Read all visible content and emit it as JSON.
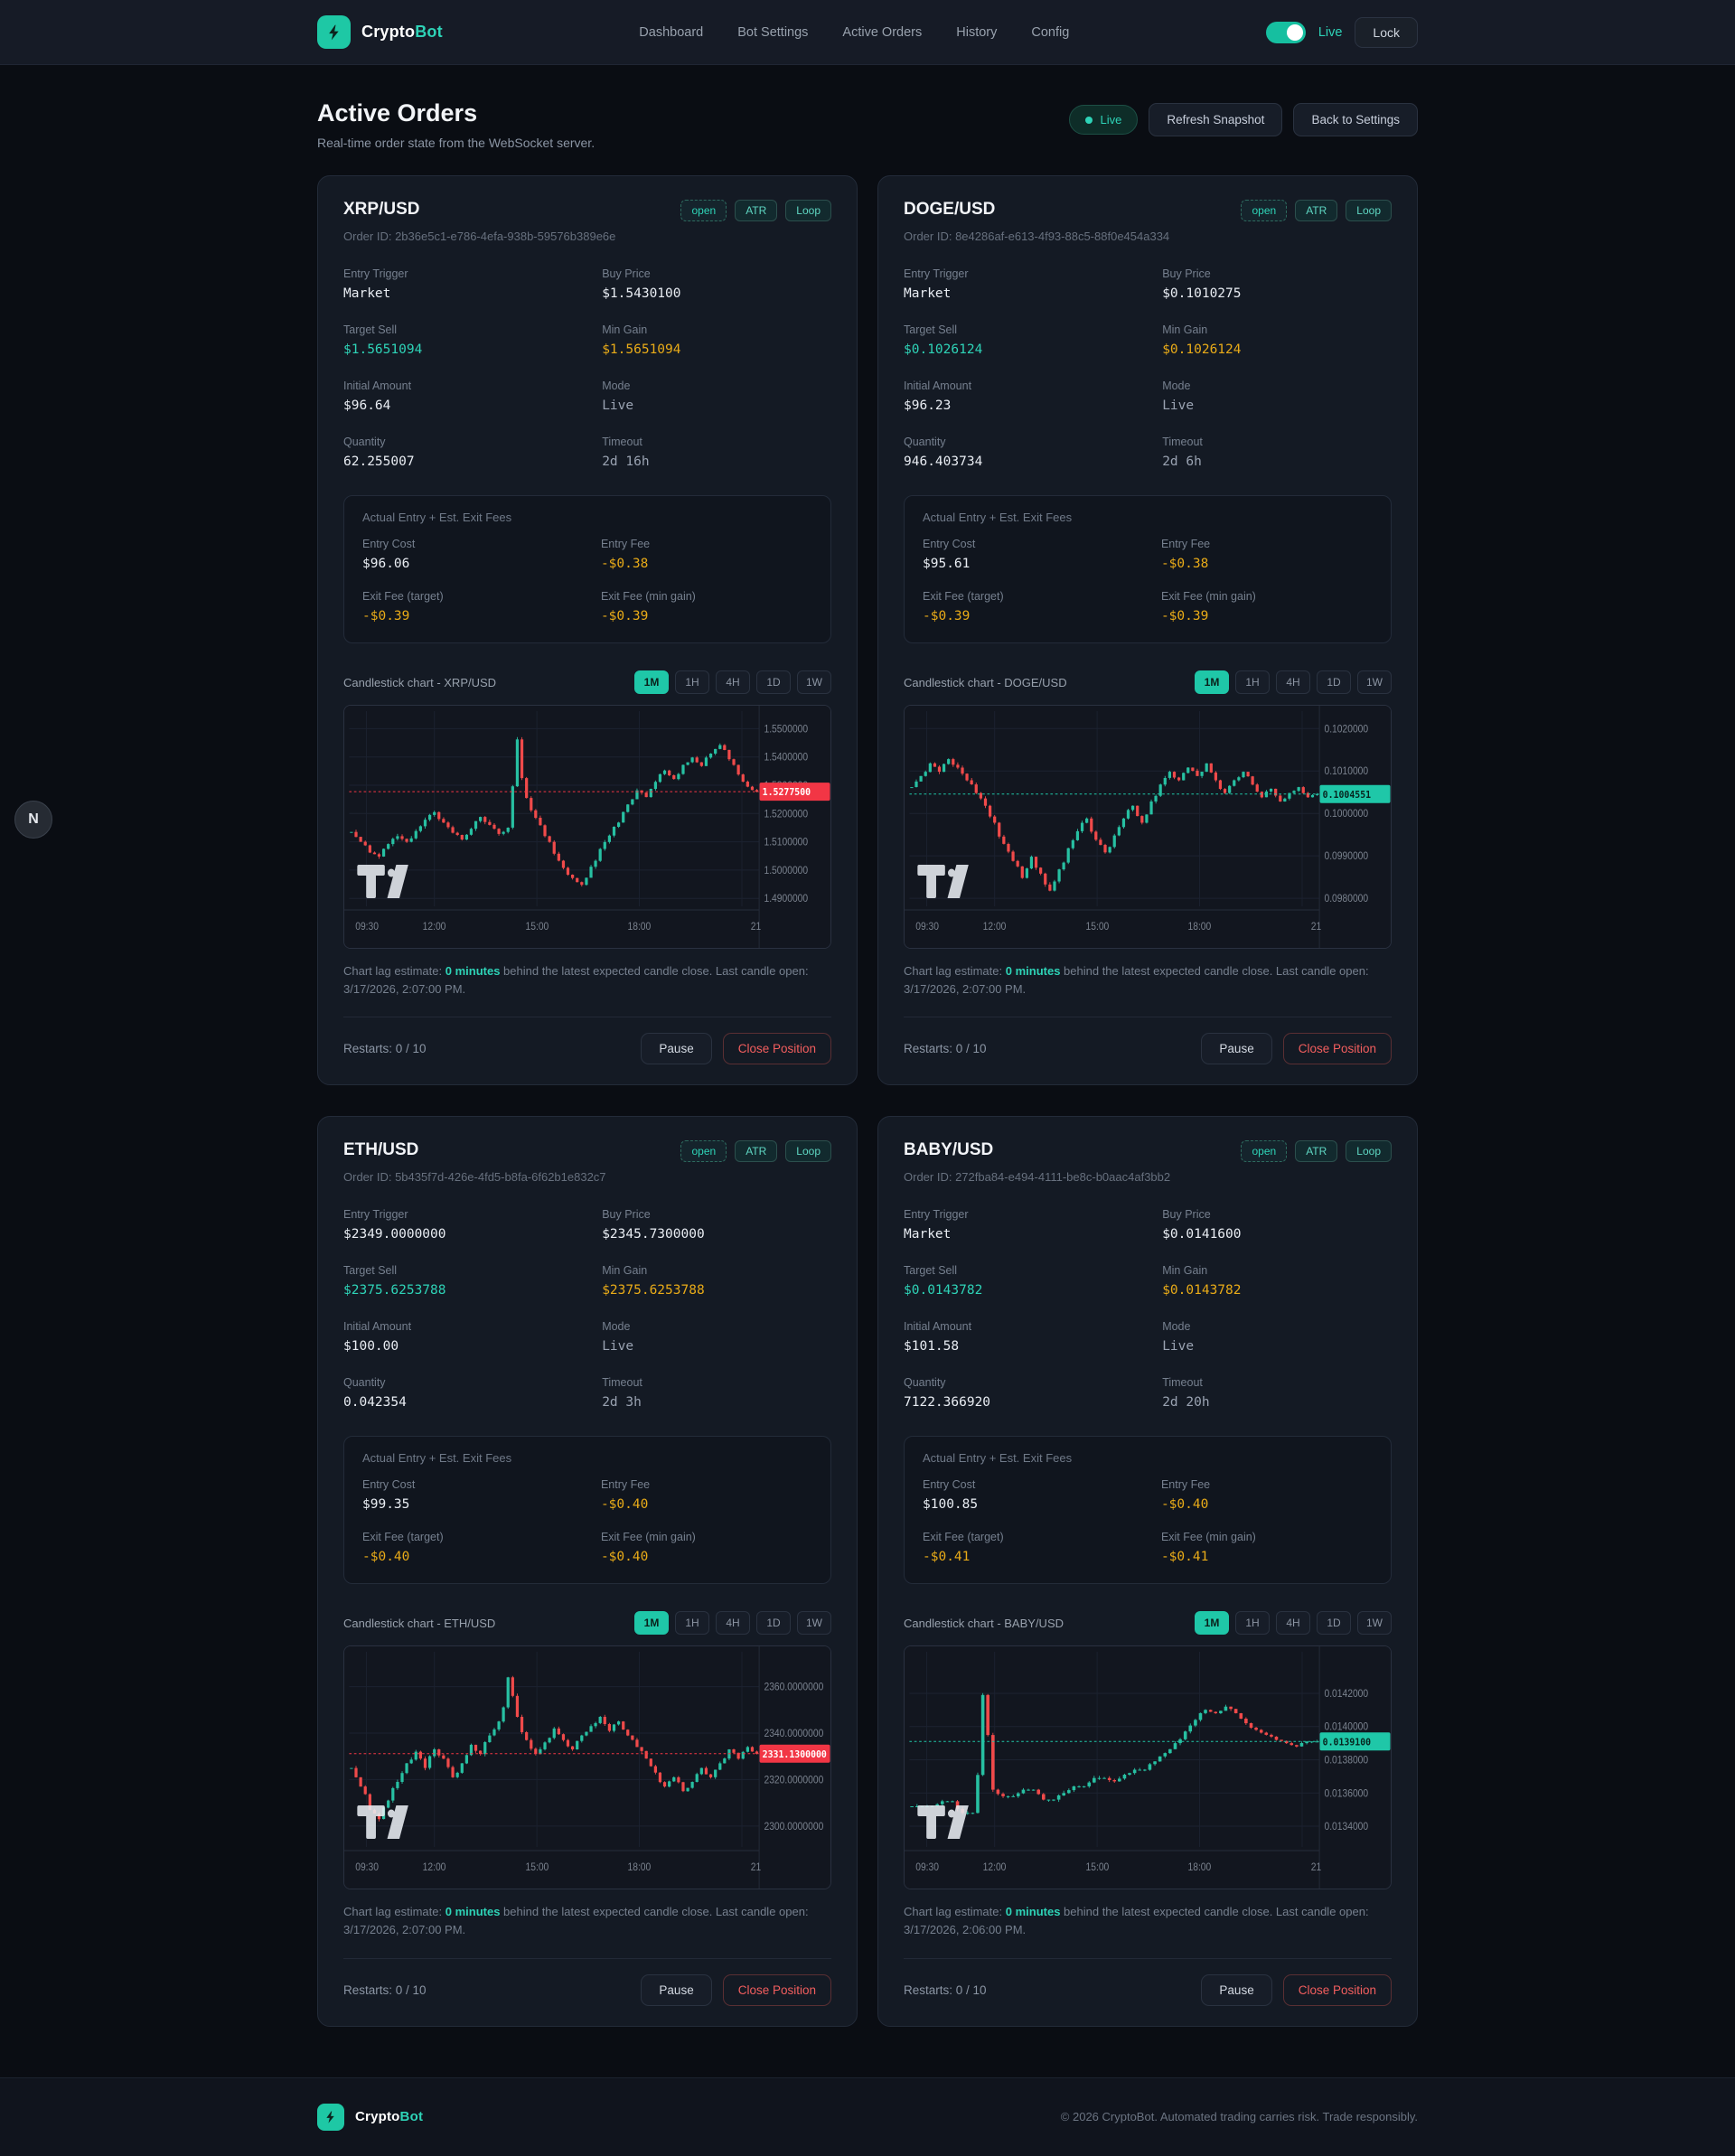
{
  "header": {
    "brand": {
      "primary": "Crypto",
      "accent": "Bot"
    },
    "nav": [
      "Dashboard",
      "Bot Settings",
      "Active Orders",
      "History",
      "Config"
    ],
    "toggle_label": "Live",
    "lock_label": "Lock"
  },
  "page": {
    "title": "Active Orders",
    "subtitle": "Real-time order state from the WebSocket server.",
    "live_badge": "Live",
    "refresh_label": "Refresh Snapshot",
    "back_label": "Back to Settings"
  },
  "floating_badge": "N",
  "cards": [
    {
      "pair": "XRP/USD",
      "order_id": "Order ID: 2b36e5c1-e786-4efa-938b-59576b389e6e",
      "badges": [
        {
          "label": "open",
          "style": "status"
        },
        {
          "label": "ATR",
          "style": "tag"
        },
        {
          "label": "Loop",
          "style": "tag"
        }
      ],
      "fields": [
        {
          "label": "Entry Trigger",
          "value": "Market",
          "cls": "white"
        },
        {
          "label": "Buy Price",
          "value": "$1.5430100",
          "cls": "white"
        },
        {
          "label": "Target Sell",
          "value": "$1.5651094",
          "cls": "teal"
        },
        {
          "label": "Min Gain",
          "value": "$1.5651094",
          "cls": "gold"
        },
        {
          "label": "Initial Amount",
          "value": "$96.64",
          "cls": "white"
        },
        {
          "label": "Mode",
          "value": "Live",
          "cls": "dim"
        },
        {
          "label": "Quantity",
          "value": "62.255007",
          "cls": "white"
        },
        {
          "label": "Timeout",
          "value": "2d 16h",
          "cls": "dim"
        }
      ],
      "fees": {
        "title": "Actual Entry + Est. Exit Fees",
        "items": [
          {
            "label": "Entry Cost",
            "value": "$96.06",
            "cls": "white"
          },
          {
            "label": "Entry Fee",
            "value": "-$0.38",
            "cls": "gold"
          },
          {
            "label": "Exit Fee (target)",
            "value": "-$0.39",
            "cls": "gold"
          },
          {
            "label": "Exit Fee (min gain)",
            "value": "-$0.39",
            "cls": "gold"
          }
        ]
      },
      "chart_title": "Candlestick chart - XRP/USD",
      "timeframes": [
        "1M",
        "1H",
        "4H",
        "1D",
        "1W"
      ],
      "active_timeframe": "1M",
      "lag": {
        "prefix": "Chart lag estimate:",
        "value": "0 minutes",
        "suffix": "behind the latest expected candle close. Last candle open: 3/17/2026, 2:07:00 PM."
      },
      "restarts": "Restarts: 0 / 10",
      "pause_label": "Pause",
      "close_label": "Close Position"
    },
    {
      "pair": "DOGE/USD",
      "order_id": "Order ID: 8e4286af-e613-4f93-88c5-88f0e454a334",
      "badges": [
        {
          "label": "open",
          "style": "status"
        },
        {
          "label": "ATR",
          "style": "tag"
        },
        {
          "label": "Loop",
          "style": "tag"
        }
      ],
      "fields": [
        {
          "label": "Entry Trigger",
          "value": "Market",
          "cls": "white"
        },
        {
          "label": "Buy Price",
          "value": "$0.1010275",
          "cls": "white"
        },
        {
          "label": "Target Sell",
          "value": "$0.1026124",
          "cls": "teal"
        },
        {
          "label": "Min Gain",
          "value": "$0.1026124",
          "cls": "gold"
        },
        {
          "label": "Initial Amount",
          "value": "$96.23",
          "cls": "white"
        },
        {
          "label": "Mode",
          "value": "Live",
          "cls": "dim"
        },
        {
          "label": "Quantity",
          "value": "946.403734",
          "cls": "white"
        },
        {
          "label": "Timeout",
          "value": "2d 6h",
          "cls": "dim"
        }
      ],
      "fees": {
        "title": "Actual Entry + Est. Exit Fees",
        "items": [
          {
            "label": "Entry Cost",
            "value": "$95.61",
            "cls": "white"
          },
          {
            "label": "Entry Fee",
            "value": "-$0.38",
            "cls": "gold"
          },
          {
            "label": "Exit Fee (target)",
            "value": "-$0.39",
            "cls": "gold"
          },
          {
            "label": "Exit Fee (min gain)",
            "value": "-$0.39",
            "cls": "gold"
          }
        ]
      },
      "chart_title": "Candlestick chart - DOGE/USD",
      "timeframes": [
        "1M",
        "1H",
        "4H",
        "1D",
        "1W"
      ],
      "active_timeframe": "1M",
      "lag": {
        "prefix": "Chart lag estimate:",
        "value": "0 minutes",
        "suffix": "behind the latest expected candle close. Last candle open: 3/17/2026, 2:07:00 PM."
      },
      "restarts": "Restarts: 0 / 10",
      "pause_label": "Pause",
      "close_label": "Close Position"
    },
    {
      "pair": "ETH/USD",
      "order_id": "Order ID: 5b435f7d-426e-4fd5-b8fa-6f62b1e832c7",
      "badges": [
        {
          "label": "open",
          "style": "status"
        },
        {
          "label": "ATR",
          "style": "tag"
        },
        {
          "label": "Loop",
          "style": "tag"
        }
      ],
      "fields": [
        {
          "label": "Entry Trigger",
          "value": "$2349.0000000",
          "cls": "white"
        },
        {
          "label": "Buy Price",
          "value": "$2345.7300000",
          "cls": "white"
        },
        {
          "label": "Target Sell",
          "value": "$2375.6253788",
          "cls": "teal"
        },
        {
          "label": "Min Gain",
          "value": "$2375.6253788",
          "cls": "gold"
        },
        {
          "label": "Initial Amount",
          "value": "$100.00",
          "cls": "white"
        },
        {
          "label": "Mode",
          "value": "Live",
          "cls": "dim"
        },
        {
          "label": "Quantity",
          "value": "0.042354",
          "cls": "white"
        },
        {
          "label": "Timeout",
          "value": "2d 3h",
          "cls": "dim"
        }
      ],
      "fees": {
        "title": "Actual Entry + Est. Exit Fees",
        "items": [
          {
            "label": "Entry Cost",
            "value": "$99.35",
            "cls": "white"
          },
          {
            "label": "Entry Fee",
            "value": "-$0.40",
            "cls": "gold"
          },
          {
            "label": "Exit Fee (target)",
            "value": "-$0.40",
            "cls": "gold"
          },
          {
            "label": "Exit Fee (min gain)",
            "value": "-$0.40",
            "cls": "gold"
          }
        ]
      },
      "chart_title": "Candlestick chart - ETH/USD",
      "timeframes": [
        "1M",
        "1H",
        "4H",
        "1D",
        "1W"
      ],
      "active_timeframe": "1M",
      "lag": {
        "prefix": "Chart lag estimate:",
        "value": "0 minutes",
        "suffix": "behind the latest expected candle close. Last candle open: 3/17/2026, 2:07:00 PM."
      },
      "restarts": "Restarts: 0 / 10",
      "pause_label": "Pause",
      "close_label": "Close Position"
    },
    {
      "pair": "BABY/USD",
      "order_id": "Order ID: 272fba84-e494-4111-be8c-b0aac4af3bb2",
      "badges": [
        {
          "label": "open",
          "style": "status"
        },
        {
          "label": "ATR",
          "style": "tag"
        },
        {
          "label": "Loop",
          "style": "tag"
        }
      ],
      "fields": [
        {
          "label": "Entry Trigger",
          "value": "Market",
          "cls": "white"
        },
        {
          "label": "Buy Price",
          "value": "$0.0141600",
          "cls": "white"
        },
        {
          "label": "Target Sell",
          "value": "$0.0143782",
          "cls": "teal"
        },
        {
          "label": "Min Gain",
          "value": "$0.0143782",
          "cls": "gold"
        },
        {
          "label": "Initial Amount",
          "value": "$101.58",
          "cls": "white"
        },
        {
          "label": "Mode",
          "value": "Live",
          "cls": "dim"
        },
        {
          "label": "Quantity",
          "value": "7122.366920",
          "cls": "white"
        },
        {
          "label": "Timeout",
          "value": "2d 20h",
          "cls": "dim"
        }
      ],
      "fees": {
        "title": "Actual Entry + Est. Exit Fees",
        "items": [
          {
            "label": "Entry Cost",
            "value": "$100.85",
            "cls": "white"
          },
          {
            "label": "Entry Fee",
            "value": "-$0.40",
            "cls": "gold"
          },
          {
            "label": "Exit Fee (target)",
            "value": "-$0.41",
            "cls": "gold"
          },
          {
            "label": "Exit Fee (min gain)",
            "value": "-$0.41",
            "cls": "gold"
          }
        ]
      },
      "chart_title": "Candlestick chart - BABY/USD",
      "timeframes": [
        "1M",
        "1H",
        "4H",
        "1D",
        "1W"
      ],
      "active_timeframe": "1M",
      "lag": {
        "prefix": "Chart lag estimate:",
        "value": "0 minutes",
        "suffix": "behind the latest expected candle close. Last candle open: 3/17/2026, 2:06:00 PM."
      },
      "restarts": "Restarts: 0 / 10",
      "pause_label": "Pause",
      "close_label": "Close Position"
    }
  ],
  "chart_data": [
    {
      "type": "candlestick",
      "title": "Candlestick chart - XRP/USD",
      "pair": "XRP/USD",
      "timeframe": "1M",
      "x_labels": [
        "09:30",
        "12:00",
        "15:00",
        "18:00",
        "21:00"
      ],
      "y_ticks": [
        "1.5500000",
        "1.5400000",
        "1.5300000",
        "1.5200000",
        "1.5100000",
        "1.5000000",
        "1.4900000"
      ],
      "y_tick_values": [
        1.55,
        1.54,
        1.53,
        1.52,
        1.51,
        1.5,
        1.49
      ],
      "y_range": [
        1.4872,
        1.5562
      ],
      "current_price": 1.52775,
      "current_price_label": "1.5277500",
      "trend": "down",
      "closes": [
        1.5135,
        1.51,
        1.5062,
        1.5048,
        1.5092,
        1.512,
        1.51,
        1.5138,
        1.5178,
        1.5205,
        1.5168,
        1.5132,
        1.5108,
        1.5146,
        1.5188,
        1.516,
        1.5128,
        1.515,
        1.5462,
        1.5255,
        1.5185,
        1.512,
        1.5058,
        1.5008,
        1.4972,
        1.4948,
        1.5012,
        1.5075,
        1.5122,
        1.5168,
        1.5232,
        1.5282,
        1.5258,
        1.5312,
        1.5352,
        1.5322,
        1.5372,
        1.5398,
        1.5368,
        1.5412,
        1.5442,
        1.5392,
        1.5338,
        1.5295,
        1.52775
      ]
    },
    {
      "type": "candlestick",
      "title": "Candlestick chart - DOGE/USD",
      "pair": "DOGE/USD",
      "timeframe": "1M",
      "x_labels": [
        "09:30",
        "12:00",
        "15:00",
        "18:00",
        "21:00"
      ],
      "y_ticks": [
        "0.1020000",
        "0.1010000",
        "0.1000000",
        "0.0990000",
        "0.0980000"
      ],
      "y_tick_values": [
        0.102,
        0.101,
        0.1,
        0.099,
        0.098
      ],
      "y_range": [
        0.09781,
        0.10241
      ],
      "current_price": 0.1004551,
      "current_price_label": "0.1004551",
      "trend": "up",
      "closes": [
        0.10062,
        0.10088,
        0.10118,
        0.10098,
        0.10128,
        0.10108,
        0.10078,
        0.10048,
        0.10018,
        0.09978,
        0.09928,
        0.09888,
        0.09848,
        0.09898,
        0.09858,
        0.09818,
        0.09868,
        0.09918,
        0.09958,
        0.09988,
        0.09938,
        0.09908,
        0.09948,
        0.09988,
        0.10018,
        0.09978,
        0.10028,
        0.10068,
        0.10098,
        0.10078,
        0.10108,
        0.10088,
        0.10118,
        0.10078,
        0.10048,
        0.10078,
        0.10098,
        0.10068,
        0.10038,
        0.10058,
        0.10028,
        0.10048,
        0.10062,
        0.10038,
        0.1004551
      ]
    },
    {
      "type": "candlestick",
      "title": "Candlestick chart - ETH/USD",
      "pair": "ETH/USD",
      "timeframe": "1M",
      "x_labels": [
        "09:30",
        "12:00",
        "15:00",
        "18:00",
        "21:00"
      ],
      "y_ticks": [
        "2360.0000000",
        "2340.0000000",
        "2320.0000000",
        "2300.0000000"
      ],
      "y_tick_values": [
        2360,
        2340,
        2320,
        2300
      ],
      "y_range": [
        2291,
        2375
      ],
      "current_price": 2331.13,
      "current_price_label": "2331.1300000",
      "trend": "down",
      "closes": [
        2325,
        2317,
        2307,
        2303,
        2311,
        2319,
        2327,
        2332,
        2325,
        2333,
        2329,
        2321,
        2327,
        2335,
        2331,
        2339,
        2345,
        2364,
        2347,
        2337,
        2331,
        2336,
        2342,
        2337,
        2333,
        2339,
        2343,
        2347,
        2341,
        2345,
        2339,
        2334,
        2329,
        2323,
        2317,
        2321,
        2315,
        2319,
        2325,
        2321,
        2327,
        2333,
        2329,
        2334,
        2331.13
      ]
    },
    {
      "type": "candlestick",
      "title": "Candlestick chart - BABY/USD",
      "pair": "BABY/USD",
      "timeframe": "1M",
      "x_labels": [
        "09:30",
        "12:00",
        "15:00",
        "18:00",
        "21:00"
      ],
      "y_ticks": [
        "0.0142000",
        "0.0140000",
        "0.0138000",
        "0.0136000",
        "0.0134000"
      ],
      "y_tick_values": [
        0.0142,
        0.014,
        0.0138,
        0.0136,
        0.0134
      ],
      "y_range": [
        0.013275,
        0.01445
      ],
      "current_price": 0.01391,
      "current_price_label": "0.0139100",
      "trend": "up",
      "closes": [
        0.01352,
        0.01352,
        0.01352,
        0.01355,
        0.01355,
        0.01348,
        0.01348,
        0.01419,
        0.01362,
        0.01358,
        0.01358,
        0.01362,
        0.01362,
        0.01356,
        0.01356,
        0.0136,
        0.01364,
        0.01364,
        0.01369,
        0.01369,
        0.01367,
        0.01371,
        0.01374,
        0.01374,
        0.01379,
        0.01384,
        0.0139,
        0.01397,
        0.01404,
        0.0141,
        0.01408,
        0.01412,
        0.01408,
        0.01402,
        0.01398,
        0.01395,
        0.01392,
        0.0139,
        0.01388,
        0.01391,
        0.01391
      ]
    }
  ],
  "footer": {
    "brand": {
      "primary": "Crypto",
      "accent": "Bot"
    },
    "copyright": "© 2026 CryptoBot. Automated trading carries risk. Trade responsibly."
  }
}
